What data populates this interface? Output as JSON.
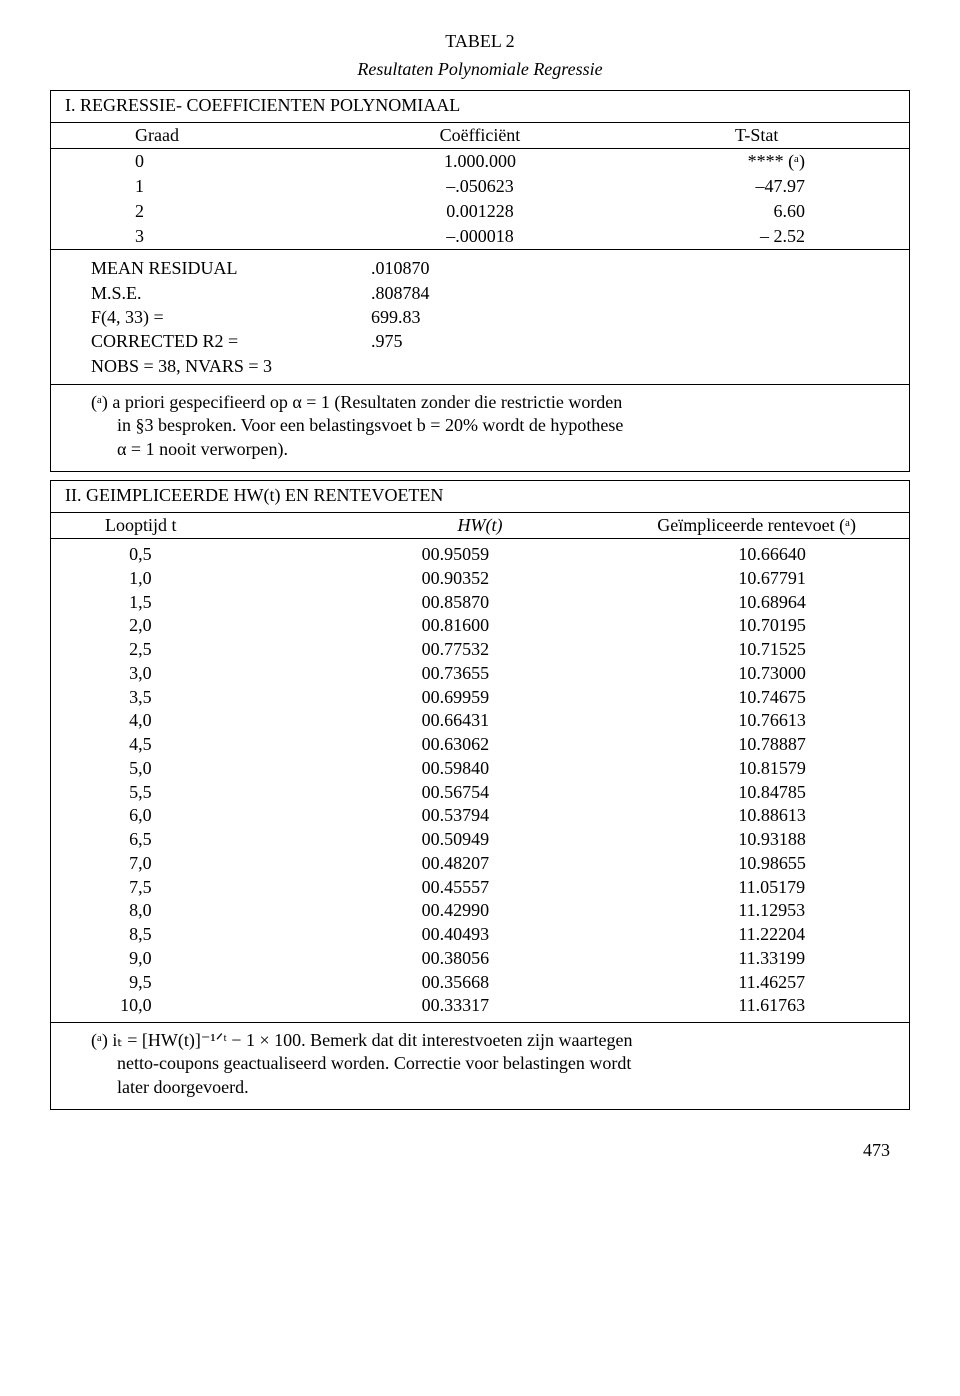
{
  "title": "TABEL 2",
  "subtitle": "Resultaten Polynomiale Regressie",
  "section1": {
    "heading": "I. REGRESSIE- COEFFICIENTEN POLYNOMIAAL",
    "headers": {
      "c1": "Graad",
      "c2": "Coëfficiënt",
      "c3": "T-Stat"
    },
    "rows": [
      {
        "c1": "0",
        "c2": "1.000.000",
        "c3": "**** (ᵃ)"
      },
      {
        "c1": "1",
        "c2": "–.050623",
        "c3": "–47.97"
      },
      {
        "c1": "2",
        "c2": "0.001228",
        "c3": "6.60"
      },
      {
        "c1": "3",
        "c2": "–.000018",
        "c3": "–  2.52"
      }
    ],
    "stats": [
      {
        "l": "MEAN RESIDUAL",
        "v": ".010870"
      },
      {
        "l": "M.S.E.",
        "v": ".808784"
      },
      {
        "l": "F(4, 33) =",
        "v": "699.83"
      },
      {
        "l": "CORRECTED  R2 =",
        "v": ".975"
      },
      {
        "l": "NOBS = 38,   NVARS = 3",
        "v": ""
      }
    ],
    "note_a": "(ᵃ) a priori gespecifieerd op α = 1 (Resultaten zonder die restrictie worden",
    "note_b": "in §3 besproken. Voor een belastingsvoet b = 20% wordt de hypothese",
    "note_c": "α = 1 nooit verworpen)."
  },
  "section2": {
    "heading": "II. GEIMPLICEERDE HW(t) EN RENTEVOETEN",
    "headers": {
      "c1": "Looptijd t",
      "c2": "HW(t)",
      "c3": "Geïmpliceerde rentevoet (ᵃ)"
    },
    "rows": [
      {
        "d1": "0,5",
        "d2": "00.95059",
        "d3": "10.66640"
      },
      {
        "d1": "1,0",
        "d2": "00.90352",
        "d3": "10.67791"
      },
      {
        "d1": "1,5",
        "d2": "00.85870",
        "d3": "10.68964"
      },
      {
        "d1": "2,0",
        "d2": "00.81600",
        "d3": "10.70195"
      },
      {
        "d1": "2,5",
        "d2": "00.77532",
        "d3": "10.71525"
      },
      {
        "d1": "3,0",
        "d2": "00.73655",
        "d3": "10.73000"
      },
      {
        "d1": "3,5",
        "d2": "00.69959",
        "d3": "10.74675"
      },
      {
        "d1": "4,0",
        "d2": "00.66431",
        "d3": "10.76613"
      },
      {
        "d1": "4,5",
        "d2": "00.63062",
        "d3": "10.78887"
      },
      {
        "d1": "5,0",
        "d2": "00.59840",
        "d3": "10.81579"
      },
      {
        "d1": "5,5",
        "d2": "00.56754",
        "d3": "10.84785"
      },
      {
        "d1": "6,0",
        "d2": "00.53794",
        "d3": "10.88613"
      },
      {
        "d1": "6,5",
        "d2": "00.50949",
        "d3": "10.93188"
      },
      {
        "d1": "7,0",
        "d2": "00.48207",
        "d3": "10.98655"
      },
      {
        "d1": "7,5",
        "d2": "00.45557",
        "d3": "11.05179"
      },
      {
        "d1": "8,0",
        "d2": "00.42990",
        "d3": "11.12953"
      },
      {
        "d1": "8,5",
        "d2": "00.40493",
        "d3": "11.22204"
      },
      {
        "d1": "9,0",
        "d2": "00.38056",
        "d3": "11.33199"
      },
      {
        "d1": "9,5",
        "d2": "00.35668",
        "d3": "11.46257"
      },
      {
        "d1": "10,0",
        "d2": "00.33317",
        "d3": "11.61763"
      }
    ],
    "foot_a": "(ᵃ)  iₜ = [HW(t)]⁻¹ᐟᵗ − 1 × 100. Bemerk dat dit interestvoeten zijn waartegen",
    "foot_b": "netto-coupons geactualiseerd worden. Correctie voor belastingen wordt",
    "foot_c": "later doorgevoerd."
  },
  "pagenum": "473"
}
